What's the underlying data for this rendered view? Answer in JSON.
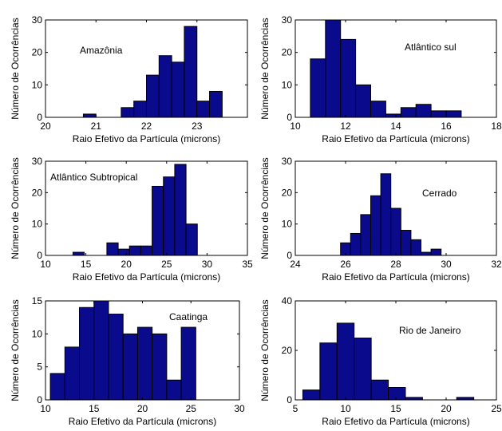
{
  "chart_data": [
    {
      "type": "bar",
      "title": "Amazônia",
      "xlabel": "Raio Efetivo da Partícula (microns)",
      "ylabel": "Número de Ocorrências",
      "xlim": [
        20,
        24
      ],
      "ylim": [
        0,
        30
      ],
      "xticks": [
        20,
        21,
        22,
        23
      ],
      "yticks": [
        0,
        10,
        20,
        30
      ],
      "bin_width": 0.25,
      "bins": [
        {
          "x0": 20.75,
          "value": 1
        },
        {
          "x0": 21.5,
          "value": 3
        },
        {
          "x0": 21.75,
          "value": 5
        },
        {
          "x0": 22.0,
          "value": 13
        },
        {
          "x0": 22.25,
          "value": 19
        },
        {
          "x0": 22.5,
          "value": 17
        },
        {
          "x0": 22.75,
          "value": 28
        },
        {
          "x0": 23.0,
          "value": 5
        },
        {
          "x0": 23.25,
          "value": 8
        }
      ],
      "bar_color": "#0a0a8c"
    },
    {
      "type": "bar",
      "title": "Atlântico sul",
      "xlabel": "Raio Efetivo da Partícula (microns)",
      "ylabel": "Número de Ocorrências",
      "xlim": [
        10,
        18
      ],
      "ylim": [
        0,
        30
      ],
      "xticks": [
        10,
        12,
        14,
        16,
        18
      ],
      "yticks": [
        0,
        10,
        20,
        30
      ],
      "bin_width": 0.6,
      "bins": [
        {
          "x0": 10.6,
          "value": 18
        },
        {
          "x0": 11.2,
          "value": 30
        },
        {
          "x0": 11.8,
          "value": 24
        },
        {
          "x0": 12.4,
          "value": 10
        },
        {
          "x0": 13.0,
          "value": 5
        },
        {
          "x0": 13.6,
          "value": 1
        },
        {
          "x0": 14.2,
          "value": 3
        },
        {
          "x0": 14.8,
          "value": 4
        },
        {
          "x0": 15.4,
          "value": 2
        },
        {
          "x0": 16.0,
          "value": 2
        }
      ],
      "bar_color": "#0a0a8c"
    },
    {
      "type": "bar",
      "title": "Atlântico Subtropical",
      "xlabel": "Raio Efetivo da Partícula (microns)",
      "ylabel": "Número de Ocorrências",
      "xlim": [
        10,
        35
      ],
      "ylim": [
        0,
        30
      ],
      "xticks": [
        10,
        15,
        20,
        25,
        30,
        35
      ],
      "yticks": [
        0,
        10,
        20,
        30
      ],
      "bin_width": 1.4,
      "bins": [
        {
          "x0": 13.4,
          "value": 1
        },
        {
          "x0": 17.6,
          "value": 4
        },
        {
          "x0": 19.0,
          "value": 2
        },
        {
          "x0": 20.4,
          "value": 3
        },
        {
          "x0": 21.8,
          "value": 3
        },
        {
          "x0": 23.2,
          "value": 22
        },
        {
          "x0": 24.6,
          "value": 25
        },
        {
          "x0": 26.0,
          "value": 29
        },
        {
          "x0": 27.4,
          "value": 10
        }
      ],
      "bar_color": "#0a0a8c"
    },
    {
      "type": "bar",
      "title": "Cerrado",
      "xlabel": "Raio Efetivo da Partícula (microns)",
      "ylabel": "Número de Ocorrências",
      "xlim": [
        24,
        32
      ],
      "ylim": [
        0,
        30
      ],
      "xticks": [
        24,
        26,
        28,
        30,
        32
      ],
      "yticks": [
        0,
        10,
        20,
        30
      ],
      "bin_width": 0.4,
      "bins": [
        {
          "x0": 25.8,
          "value": 4
        },
        {
          "x0": 26.2,
          "value": 7
        },
        {
          "x0": 26.6,
          "value": 13
        },
        {
          "x0": 27.0,
          "value": 19
        },
        {
          "x0": 27.4,
          "value": 26
        },
        {
          "x0": 27.8,
          "value": 15
        },
        {
          "x0": 28.2,
          "value": 8
        },
        {
          "x0": 28.6,
          "value": 5
        },
        {
          "x0": 29.0,
          "value": 1
        },
        {
          "x0": 29.4,
          "value": 2
        }
      ],
      "bar_color": "#0a0a8c"
    },
    {
      "type": "bar",
      "title": "Caatinga",
      "xlabel": "Raio Efetivo da Partícula (microns)",
      "ylabel": "Número de Ocorrências",
      "xlim": [
        10,
        30
      ],
      "ylim": [
        0,
        15
      ],
      "xticks": [
        10,
        15,
        20,
        25,
        30
      ],
      "yticks": [
        0,
        5,
        10,
        15
      ],
      "bin_width": 1.5,
      "bins": [
        {
          "x0": 10.5,
          "value": 4
        },
        {
          "x0": 12.0,
          "value": 8
        },
        {
          "x0": 13.5,
          "value": 14
        },
        {
          "x0": 15.0,
          "value": 15
        },
        {
          "x0": 16.5,
          "value": 13
        },
        {
          "x0": 18.0,
          "value": 10
        },
        {
          "x0": 19.5,
          "value": 11
        },
        {
          "x0": 21.0,
          "value": 10
        },
        {
          "x0": 22.5,
          "value": 3
        },
        {
          "x0": 24.0,
          "value": 11
        }
      ],
      "bar_color": "#0a0a8c"
    },
    {
      "type": "bar",
      "title": "Rio de Janeiro",
      "xlabel": "Raio Efetivo da Partícula (microns)",
      "ylabel": "Número de Ocorrências",
      "xlim": [
        5,
        25
      ],
      "ylim": [
        0,
        40
      ],
      "xticks": [
        5,
        10,
        15,
        20,
        25
      ],
      "yticks": [
        0,
        20,
        40
      ],
      "bin_width": 1.7,
      "bins": [
        {
          "x0": 5.75,
          "value": 4
        },
        {
          "x0": 7.45,
          "value": 23
        },
        {
          "x0": 9.15,
          "value": 31
        },
        {
          "x0": 10.85,
          "value": 25
        },
        {
          "x0": 12.55,
          "value": 8
        },
        {
          "x0": 14.25,
          "value": 5
        },
        {
          "x0": 15.95,
          "value": 1
        },
        {
          "x0": 21.05,
          "value": 1
        }
      ],
      "bar_color": "#0a0a8c"
    }
  ]
}
